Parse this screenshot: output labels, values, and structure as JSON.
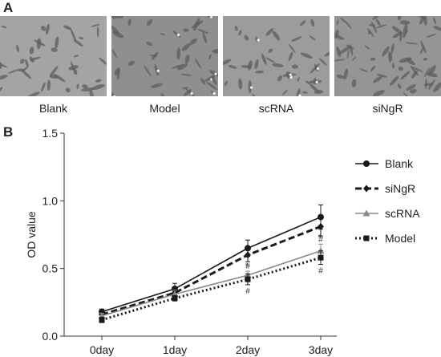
{
  "panels": {
    "a": "A",
    "b": "B"
  },
  "micrographs": [
    {
      "label": "Blank"
    },
    {
      "label": "Model"
    },
    {
      "label": "scRNA"
    },
    {
      "label": "siNgR"
    }
  ],
  "chart_data": {
    "type": "line",
    "ylabel": "OD value",
    "xlabel": "",
    "categories": [
      "0day",
      "1day",
      "2day",
      "3day"
    ],
    "ylim": [
      0.0,
      1.5
    ],
    "yticks": [
      "0.0",
      "0.5",
      "1.0",
      "1.5"
    ],
    "grid": false,
    "legend_position": "right",
    "series": [
      {
        "name": "Blank",
        "values": [
          0.18,
          0.35,
          0.65,
          0.88
        ],
        "err": [
          0.02,
          0.04,
          0.06,
          0.09
        ],
        "color": "#1a1a1a",
        "dash": "solid",
        "marker": "circle",
        "annot": [
          "",
          "",
          "",
          ""
        ]
      },
      {
        "name": "siNgR",
        "values": [
          0.16,
          0.32,
          0.6,
          0.81
        ],
        "err": [
          0.02,
          0.03,
          0.05,
          0.07
        ],
        "color": "#1a1a1a",
        "dash": "dashed",
        "marker": "diamond",
        "annot": [
          "",
          "",
          "",
          ""
        ]
      },
      {
        "name": "scRNA",
        "values": [
          0.15,
          0.31,
          0.45,
          0.63
        ],
        "err": [
          0.02,
          0.03,
          0.03,
          0.05
        ],
        "color": "#8a8a8a",
        "dash": "solid",
        "marker": "triangle",
        "annot": [
          "",
          "",
          "#",
          "#"
        ]
      },
      {
        "name": "Model",
        "values": [
          0.12,
          0.28,
          0.42,
          0.58
        ],
        "err": [
          0.02,
          0.02,
          0.04,
          0.05
        ],
        "color": "#1a1a1a",
        "dash": "dotted",
        "marker": "square",
        "annot": [
          "",
          "",
          "#",
          "#"
        ]
      }
    ],
    "annotations": [
      "*",
      "*",
      "#",
      "#",
      "#",
      "#"
    ]
  }
}
